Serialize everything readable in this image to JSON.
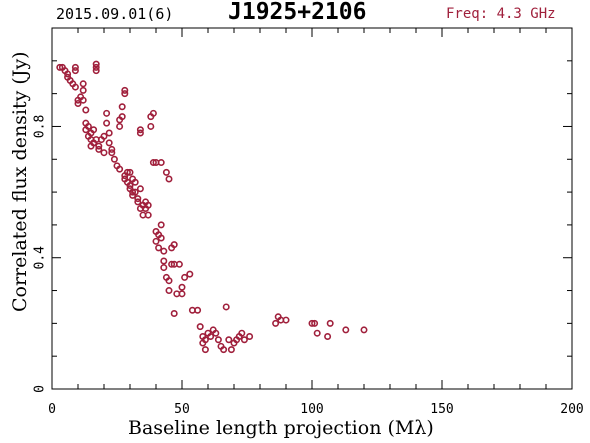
{
  "header": {
    "date": "2015.09.01(6)",
    "source": "J1925+2106",
    "frequency": "Freq: 4.3 GHz"
  },
  "chart_data": {
    "type": "scatter",
    "title": "J1925+2106",
    "xlabel": "Baseline length projection (Mλ)",
    "ylabel": "Correlated flux density (Jy)",
    "xlim": [
      0,
      200
    ],
    "ylim": [
      0,
      1.1
    ],
    "xticks": [
      0,
      50,
      100,
      150,
      200
    ],
    "yticks": [
      0,
      0.4,
      0.8
    ],
    "x_tick_labels": [
      "0",
      "50",
      "100",
      "150",
      "200"
    ],
    "y_tick_labels": [
      "0",
      "0.4",
      "0.8"
    ],
    "marker_color": "#a0203c",
    "grid": false,
    "series": [
      {
        "points": [
          [
            3,
            0.98
          ],
          [
            4,
            0.98
          ],
          [
            5,
            0.97
          ],
          [
            6,
            0.96
          ],
          [
            6,
            0.95
          ],
          [
            7,
            0.94
          ],
          [
            8,
            0.93
          ],
          [
            9,
            0.97
          ],
          [
            9,
            0.98
          ],
          [
            9,
            0.92
          ],
          [
            10,
            0.88
          ],
          [
            10,
            0.87
          ],
          [
            11,
            0.89
          ],
          [
            12,
            0.93
          ],
          [
            12,
            0.91
          ],
          [
            12,
            0.88
          ],
          [
            13,
            0.85
          ],
          [
            13,
            0.81
          ],
          [
            13,
            0.79
          ],
          [
            14,
            0.8
          ],
          [
            14,
            0.77
          ],
          [
            15,
            0.78
          ],
          [
            15,
            0.76
          ],
          [
            15,
            0.74
          ],
          [
            16,
            0.79
          ],
          [
            16,
            0.75
          ],
          [
            17,
            0.99
          ],
          [
            17,
            0.97
          ],
          [
            17,
            0.98
          ],
          [
            17,
            0.76
          ],
          [
            18,
            0.73
          ],
          [
            18,
            0.74
          ],
          [
            19,
            0.76
          ],
          [
            20,
            0.72
          ],
          [
            20,
            0.77
          ],
          [
            21,
            0.84
          ],
          [
            21,
            0.81
          ],
          [
            22,
            0.78
          ],
          [
            22,
            0.75
          ],
          [
            23,
            0.73
          ],
          [
            23,
            0.72
          ],
          [
            24,
            0.7
          ],
          [
            25,
            0.68
          ],
          [
            26,
            0.67
          ],
          [
            26,
            0.82
          ],
          [
            26,
            0.8
          ],
          [
            27,
            0.83
          ],
          [
            27,
            0.86
          ],
          [
            28,
            0.91
          ],
          [
            28,
            0.9
          ],
          [
            28,
            0.65
          ],
          [
            28,
            0.64
          ],
          [
            29,
            0.66
          ],
          [
            29,
            0.63
          ],
          [
            30,
            0.66
          ],
          [
            30,
            0.62
          ],
          [
            30,
            0.61
          ],
          [
            31,
            0.64
          ],
          [
            31,
            0.6
          ],
          [
            31,
            0.59
          ],
          [
            32,
            0.63
          ],
          [
            32,
            0.6
          ],
          [
            33,
            0.58
          ],
          [
            33,
            0.57
          ],
          [
            34,
            0.61
          ],
          [
            34,
            0.55
          ],
          [
            34,
            0.79
          ],
          [
            34,
            0.78
          ],
          [
            35,
            0.56
          ],
          [
            35,
            0.53
          ],
          [
            36,
            0.57
          ],
          [
            36,
            0.55
          ],
          [
            37,
            0.53
          ],
          [
            37,
            0.56
          ],
          [
            38,
            0.8
          ],
          [
            38,
            0.83
          ],
          [
            39,
            0.84
          ],
          [
            39,
            0.69
          ],
          [
            40,
            0.69
          ],
          [
            40,
            0.48
          ],
          [
            40,
            0.45
          ],
          [
            41,
            0.47
          ],
          [
            41,
            0.43
          ],
          [
            42,
            0.69
          ],
          [
            42,
            0.5
          ],
          [
            42,
            0.46
          ],
          [
            43,
            0.42
          ],
          [
            43,
            0.39
          ],
          [
            43,
            0.37
          ],
          [
            44,
            0.34
          ],
          [
            44,
            0.66
          ],
          [
            45,
            0.64
          ],
          [
            45,
            0.33
          ],
          [
            45,
            0.3
          ],
          [
            46,
            0.38
          ],
          [
            46,
            0.43
          ],
          [
            47,
            0.44
          ],
          [
            47,
            0.38
          ],
          [
            47,
            0.23
          ],
          [
            48,
            0.29
          ],
          [
            49,
            0.38
          ],
          [
            50,
            0.31
          ],
          [
            50,
            0.29
          ],
          [
            51,
            0.34
          ],
          [
            53,
            0.35
          ],
          [
            54,
            0.24
          ],
          [
            56,
            0.24
          ],
          [
            57,
            0.19
          ],
          [
            58,
            0.16
          ],
          [
            58,
            0.14
          ],
          [
            59,
            0.15
          ],
          [
            59,
            0.12
          ],
          [
            60,
            0.17
          ],
          [
            61,
            0.16
          ],
          [
            62,
            0.18
          ],
          [
            63,
            0.17
          ],
          [
            64,
            0.15
          ],
          [
            65,
            0.13
          ],
          [
            66,
            0.12
          ],
          [
            67,
            0.25
          ],
          [
            68,
            0.15
          ],
          [
            69,
            0.12
          ],
          [
            70,
            0.14
          ],
          [
            71,
            0.15
          ],
          [
            72,
            0.16
          ],
          [
            73,
            0.17
          ],
          [
            74,
            0.15
          ],
          [
            76,
            0.16
          ],
          [
            86,
            0.2
          ],
          [
            87,
            0.22
          ],
          [
            88,
            0.21
          ],
          [
            90,
            0.21
          ],
          [
            100,
            0.2
          ],
          [
            101,
            0.2
          ],
          [
            102,
            0.17
          ],
          [
            106,
            0.16
          ],
          [
            107,
            0.2
          ],
          [
            113,
            0.18
          ],
          [
            120,
            0.18
          ]
        ]
      }
    ]
  }
}
